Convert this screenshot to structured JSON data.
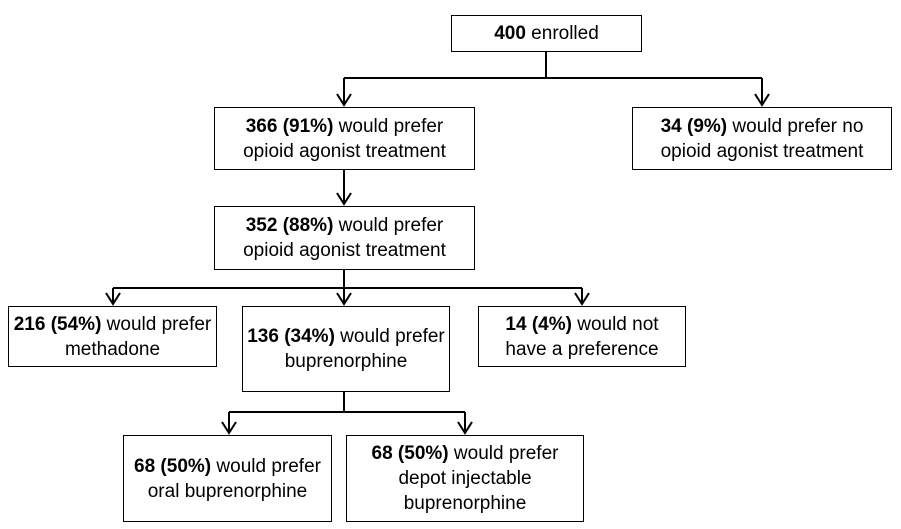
{
  "boxes": {
    "enrolled": {
      "bold": "400",
      "text": " enrolled"
    },
    "prefer_oat": {
      "bold": "366 (91%)",
      "text": " would prefer opioid agonist treatment"
    },
    "prefer_no_oat": {
      "bold": "34 (9%)",
      "text": " would prefer no opioid agonist treatment"
    },
    "prefer_oat_2": {
      "bold": "352 (88%)",
      "text": " would prefer opioid agonist treatment"
    },
    "methadone": {
      "bold": "216 (54%)",
      "text": " would prefer methadone"
    },
    "buprenorphine": {
      "bold": "136 (34%)",
      "text": " would prefer buprenorphine"
    },
    "no_preference": {
      "bold": "14 (4%)",
      "text": " would not have a preference"
    },
    "oral_bup": {
      "bold": "68 (50%)",
      "text": " would prefer oral buprenorphine"
    },
    "depot_bup": {
      "bold": "68 (50%)",
      "text": " would prefer depot injectable buprenorphine"
    }
  }
}
